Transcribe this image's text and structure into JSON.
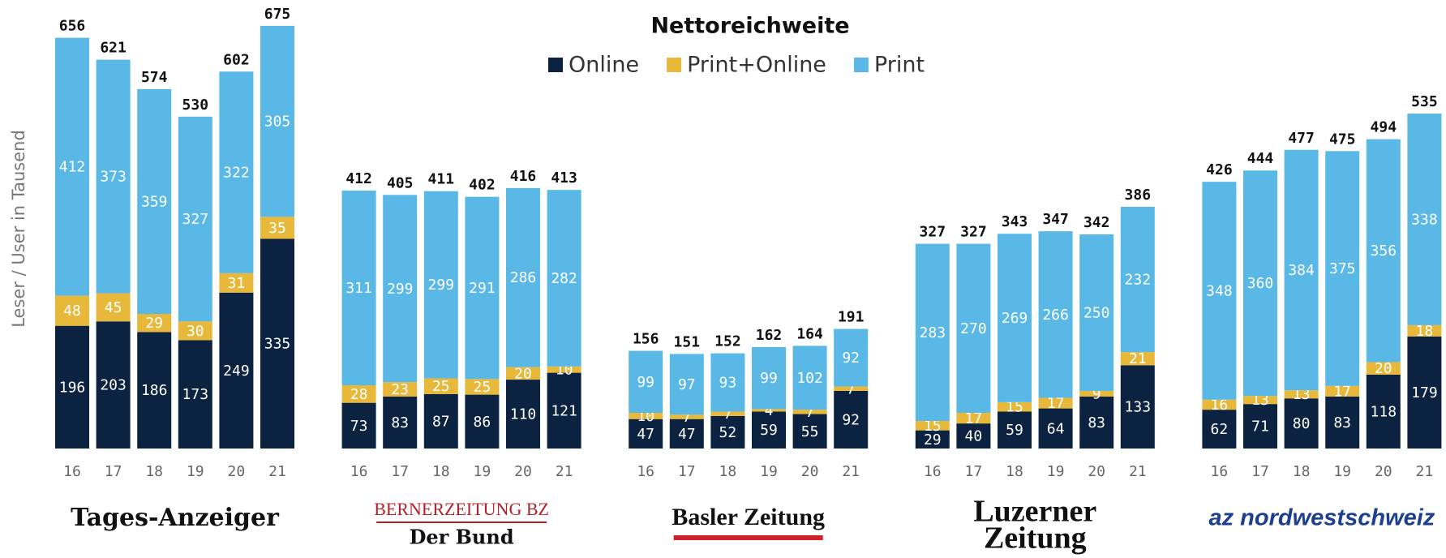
{
  "chart_data": {
    "type": "bar",
    "stacked": true,
    "title": "Nettoreichweite",
    "ylabel": "Leser / User in Tausend",
    "series": [
      {
        "name": "Online",
        "color": "#0b2240",
        "values": [
          [
            196,
            203,
            186,
            173,
            249,
            335
          ],
          [
            73,
            83,
            87,
            86,
            110,
            121
          ],
          [
            47,
            47,
            52,
            59,
            55,
            92
          ],
          [
            29,
            40,
            59,
            64,
            83,
            133
          ],
          [
            62,
            71,
            80,
            83,
            118,
            179
          ]
        ]
      },
      {
        "name": "Print+Online",
        "color": "#e8b83a",
        "values": [
          [
            48,
            45,
            29,
            30,
            31,
            35
          ],
          [
            28,
            23,
            25,
            25,
            20,
            10
          ],
          [
            10,
            7,
            7,
            4,
            7,
            7
          ],
          [
            15,
            17,
            15,
            17,
            9,
            21
          ],
          [
            16,
            13,
            13,
            17,
            20,
            18
          ]
        ]
      },
      {
        "name": "Print",
        "color": "#5ab8e6",
        "values": [
          [
            412,
            373,
            359,
            327,
            322,
            305
          ],
          [
            311,
            299,
            299,
            291,
            286,
            282
          ],
          [
            99,
            97,
            93,
            99,
            102,
            92
          ],
          [
            283,
            270,
            269,
            266,
            250,
            232
          ],
          [
            348,
            360,
            384,
            375,
            356,
            338
          ]
        ]
      }
    ],
    "groups": [
      {
        "labels": [
          "Tages-Anzeiger"
        ],
        "categories": [
          "16",
          "17",
          "18",
          "19",
          "20",
          "21"
        ],
        "totals": [
          656,
          621,
          574,
          530,
          602,
          675
        ]
      },
      {
        "labels": [
          "BERNERZEITUNG BZ",
          "Der Bund"
        ],
        "categories": [
          "16",
          "17",
          "18",
          "19",
          "20",
          "21"
        ],
        "totals": [
          412,
          405,
          411,
          402,
          416,
          413
        ]
      },
      {
        "labels": [
          "Basler Zeitung"
        ],
        "categories": [
          "16",
          "17",
          "18",
          "19",
          "20",
          "21"
        ],
        "totals": [
          156,
          151,
          152,
          162,
          164,
          191
        ]
      },
      {
        "labels": [
          "Luzerner",
          "Zeitung"
        ],
        "categories": [
          "16",
          "17",
          "18",
          "19",
          "20",
          "21"
        ],
        "totals": [
          327,
          327,
          343,
          347,
          342,
          386
        ]
      },
      {
        "labels": [
          "az nordwestschweiz"
        ],
        "categories": [
          "16",
          "17",
          "18",
          "19",
          "20",
          "21"
        ],
        "totals": [
          426,
          444,
          477,
          475,
          494,
          535
        ]
      }
    ]
  }
}
